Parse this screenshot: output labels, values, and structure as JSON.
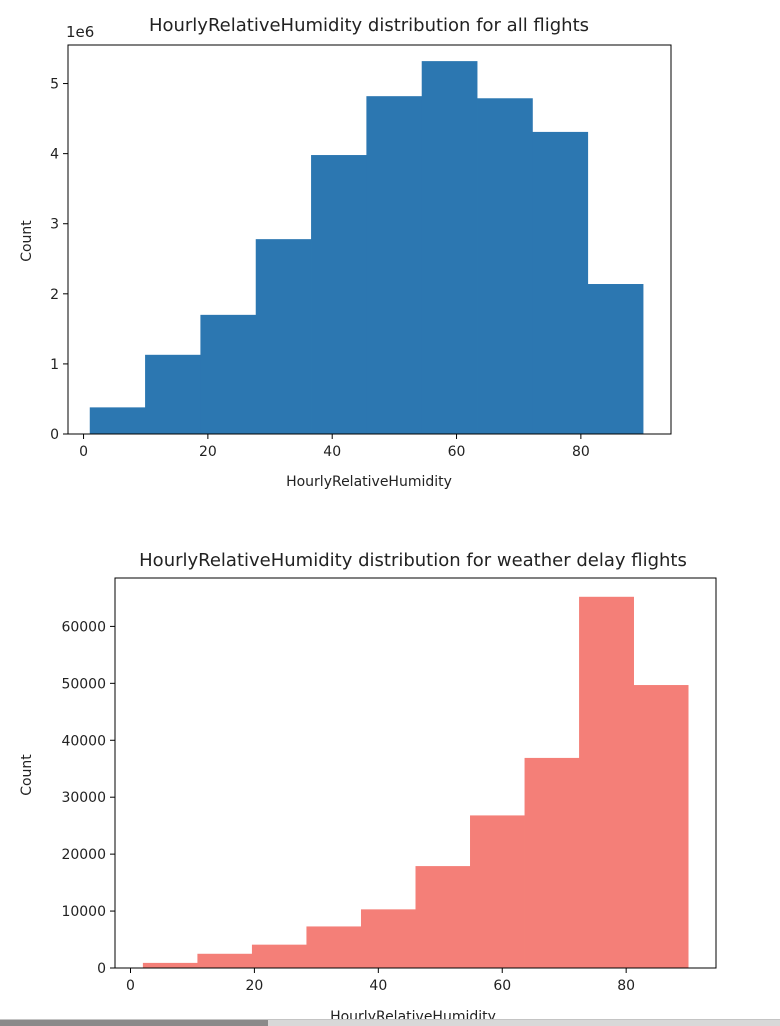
{
  "chart_data": [
    {
      "type": "bar",
      "title": "HourlyRelativeHumidity distribution for all flights",
      "xlabel": "HourlyRelativeHumidity",
      "ylabel": "Count",
      "offset_text": "1e6",
      "xlim": [
        -2.5,
        94.5
      ],
      "ylim": [
        0,
        5.55
      ],
      "xticks": [
        0,
        20,
        40,
        60,
        80
      ],
      "yticks": [
        0,
        1,
        2,
        3,
        4,
        5
      ],
      "bin_edges": [
        1,
        9.9,
        18.8,
        27.7,
        36.6,
        45.5,
        54.4,
        63.3,
        72.2,
        81.1,
        90
      ],
      "values": [
        0.38,
        1.13,
        1.7,
        2.78,
        3.98,
        4.82,
        5.32,
        4.79,
        4.31,
        2.14
      ],
      "color": "#2c77b1",
      "grid": false
    },
    {
      "type": "bar",
      "title": "HourlyRelativeHumidity distribution for weather delay flights",
      "xlabel": "HourlyRelativeHumidity",
      "ylabel": "Count",
      "xlim": [
        -2.5,
        94.5
      ],
      "ylim": [
        0,
        68500
      ],
      "xticks": [
        0,
        20,
        40,
        60,
        80
      ],
      "yticks": [
        0,
        10000,
        20000,
        30000,
        40000,
        50000,
        60000
      ],
      "bin_edges": [
        2,
        10.8,
        19.6,
        28.4,
        37.2,
        46,
        54.8,
        63.6,
        72.4,
        81.2,
        90
      ],
      "values": [
        900,
        2500,
        4100,
        7300,
        10300,
        17900,
        26800,
        36900,
        65200,
        49700
      ],
      "color": "#f47f78",
      "grid": false
    }
  ]
}
